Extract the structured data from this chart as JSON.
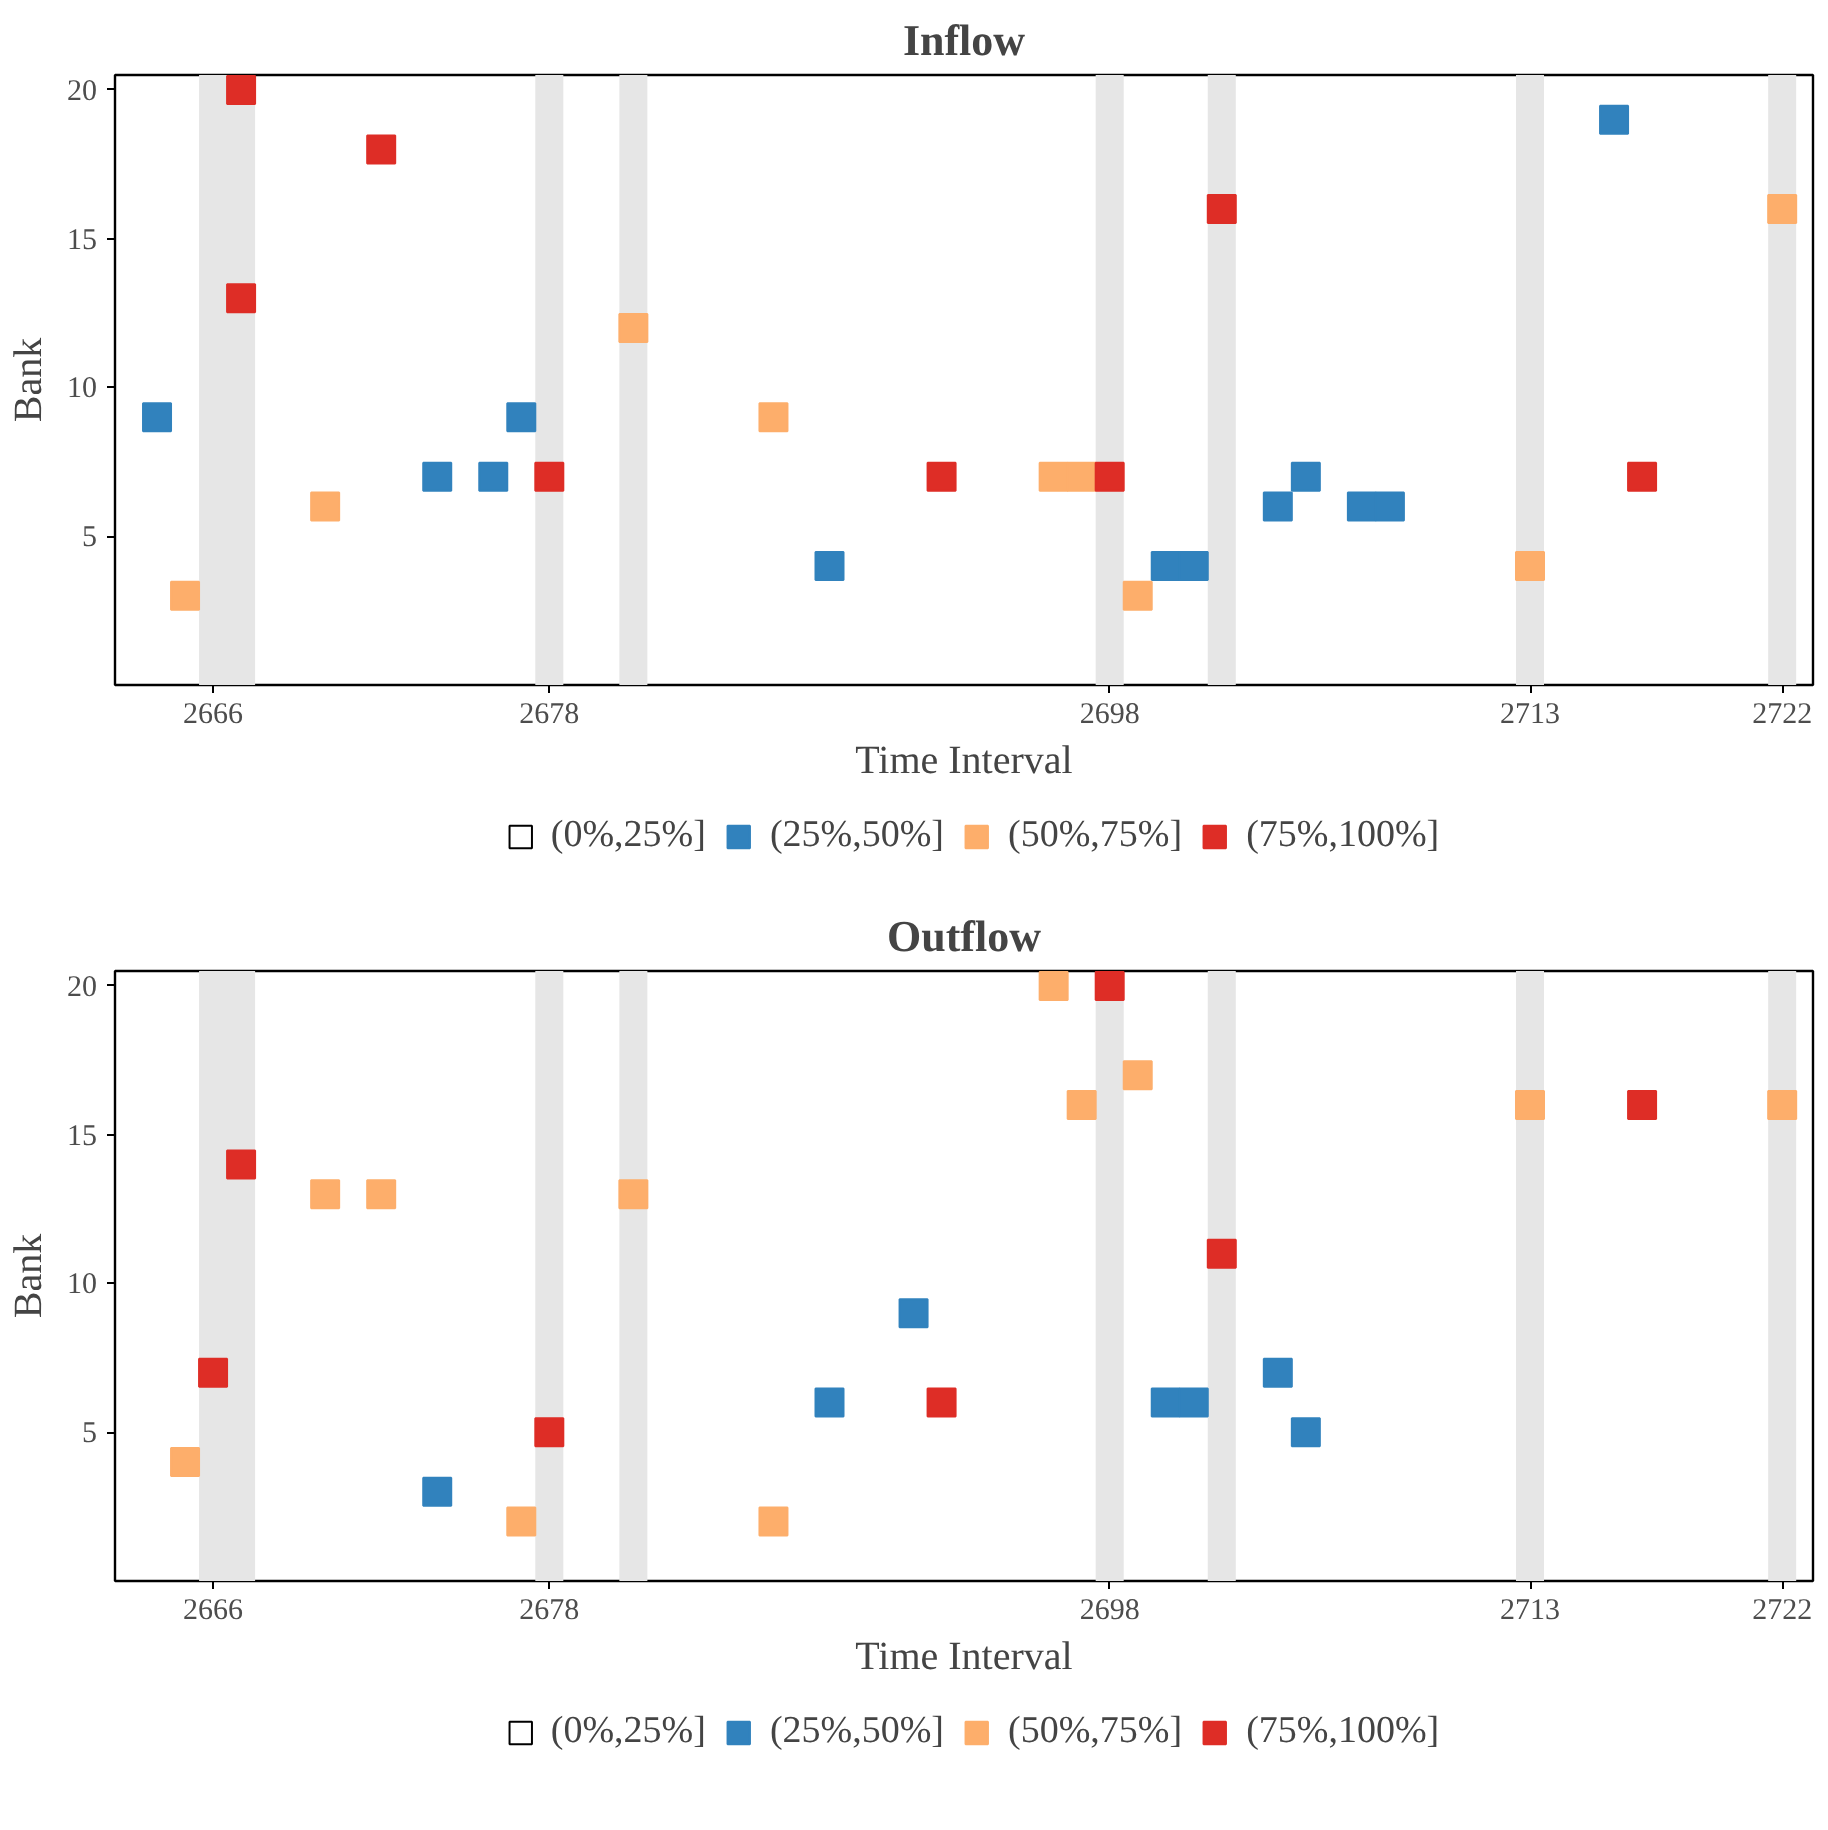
{
  "chart_data": [
    {
      "type": "scatter",
      "title": "Inflow",
      "xlabel": "Time Interval",
      "ylabel": "Bank",
      "marker": "square",
      "legend": "bottom",
      "grid": false,
      "xlim": [
        2662.5,
        2723.1
      ],
      "ylim": [
        0,
        20.5
      ],
      "xticks": [
        2666,
        2678,
        2698,
        2713,
        2722
      ],
      "yticks": [
        5,
        10,
        15,
        20
      ],
      "bands": [
        {
          "axis": "x",
          "from": 2665.5,
          "to": 2667.5,
          "color": "#e6e6e6"
        },
        {
          "axis": "x",
          "from": 2677.5,
          "to": 2678.5,
          "color": "#e6e6e6"
        },
        {
          "axis": "x",
          "from": 2680.5,
          "to": 2681.5,
          "color": "#e6e6e6"
        },
        {
          "axis": "x",
          "from": 2697.5,
          "to": 2698.5,
          "color": "#e6e6e6"
        },
        {
          "axis": "x",
          "from": 2701.5,
          "to": 2702.5,
          "color": "#e6e6e6"
        },
        {
          "axis": "x",
          "from": 2712.5,
          "to": 2713.5,
          "color": "#e6e6e6"
        },
        {
          "axis": "x",
          "from": 2721.5,
          "to": 2722.5,
          "color": "#e6e6e6"
        }
      ],
      "series": [
        {
          "name": "(0%,25%]",
          "color": "#ffffff"
        },
        {
          "name": "(25%,50%]",
          "color": "#3182bd",
          "x": [
            2664,
            2674,
            2676,
            2677,
            2688,
            2700,
            2701,
            2704,
            2705,
            2707,
            2708,
            2716
          ],
          "values": [
            9,
            7,
            7,
            9,
            4,
            4,
            4,
            6,
            7,
            6,
            6,
            19
          ]
        },
        {
          "name": "(50%,75%]",
          "color": "#fdae6b",
          "x": [
            2665,
            2670,
            2681,
            2686,
            2696,
            2697,
            2699,
            2713,
            2722
          ],
          "values": [
            3,
            6,
            12,
            9,
            7,
            7,
            3,
            4,
            16
          ]
        },
        {
          "name": "(75%,100%]",
          "color": "#de2d26",
          "x": [
            2667,
            2667,
            2672,
            2678,
            2692,
            2698,
            2702,
            2717
          ],
          "values": [
            13,
            20,
            18,
            7,
            7,
            7,
            16,
            7
          ]
        }
      ]
    },
    {
      "type": "scatter",
      "title": "Outflow",
      "xlabel": "Time Interval",
      "ylabel": "Bank",
      "marker": "square",
      "legend": "bottom",
      "grid": false,
      "xlim": [
        2662.5,
        2723.1
      ],
      "ylim": [
        0,
        20.5
      ],
      "xticks": [
        2666,
        2678,
        2698,
        2713,
        2722
      ],
      "yticks": [
        5,
        10,
        15,
        20
      ],
      "bands": [
        {
          "axis": "x",
          "from": 2665.5,
          "to": 2667.5,
          "color": "#e6e6e6"
        },
        {
          "axis": "x",
          "from": 2677.5,
          "to": 2678.5,
          "color": "#e6e6e6"
        },
        {
          "axis": "x",
          "from": 2680.5,
          "to": 2681.5,
          "color": "#e6e6e6"
        },
        {
          "axis": "x",
          "from": 2697.5,
          "to": 2698.5,
          "color": "#e6e6e6"
        },
        {
          "axis": "x",
          "from": 2701.5,
          "to": 2702.5,
          "color": "#e6e6e6"
        },
        {
          "axis": "x",
          "from": 2712.5,
          "to": 2713.5,
          "color": "#e6e6e6"
        },
        {
          "axis": "x",
          "from": 2721.5,
          "to": 2722.5,
          "color": "#e6e6e6"
        }
      ],
      "series": [
        {
          "name": "(0%,25%]",
          "color": "#ffffff"
        },
        {
          "name": "(25%,50%]",
          "color": "#3182bd",
          "x": [
            2674,
            2688,
            2691,
            2700,
            2701,
            2704,
            2705
          ],
          "values": [
            3,
            6,
            9,
            6,
            6,
            7,
            5
          ]
        },
        {
          "name": "(50%,75%]",
          "color": "#fdae6b",
          "x": [
            2665,
            2670,
            2672,
            2677,
            2681,
            2686,
            2696,
            2697,
            2699,
            2713,
            2722
          ],
          "values": [
            4,
            13,
            13,
            2,
            13,
            2,
            20,
            16,
            17,
            16,
            16
          ]
        },
        {
          "name": "(75%,100%]",
          "color": "#de2d26",
          "x": [
            2666,
            2667,
            2678,
            2692,
            2698,
            2702,
            2717
          ],
          "values": [
            7,
            14,
            5,
            6,
            20,
            11,
            16
          ]
        }
      ]
    }
  ]
}
